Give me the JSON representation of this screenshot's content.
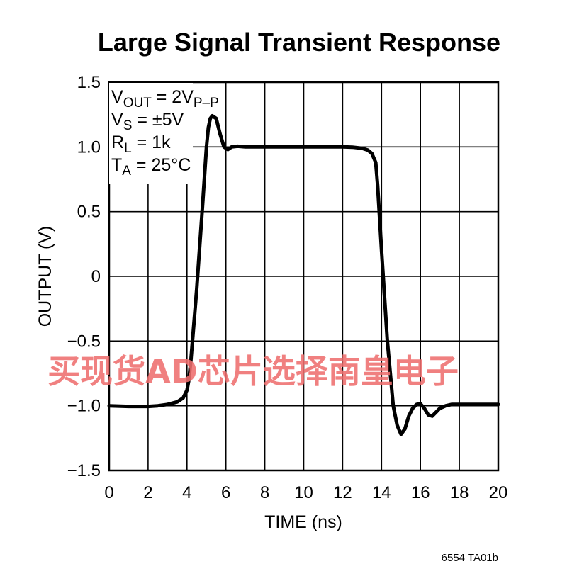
{
  "chart_data": {
    "type": "line",
    "title": "Large Signal Transient Response",
    "xlabel": "TIME (ns)",
    "ylabel": "OUTPUT (V)",
    "xlim": [
      0,
      20
    ],
    "ylim": [
      -1.5,
      1.5
    ],
    "x_ticks": [
      0,
      2,
      4,
      6,
      8,
      10,
      12,
      14,
      16,
      18,
      20
    ],
    "y_ticks": [
      1.5,
      1.0,
      0.5,
      0,
      -0.5,
      -1.0,
      -1.5
    ],
    "x_tick_labels": [
      "0",
      "2",
      "4",
      "6",
      "8",
      "10",
      "12",
      "14",
      "16",
      "18",
      "20"
    ],
    "y_tick_labels": [
      "1.5",
      "1.0",
      "0.5",
      "0",
      "−0.5",
      "−1.0",
      "−1.5"
    ],
    "grid": true,
    "series": [
      {
        "x": [
          0,
          1,
          2,
          2.5,
          3,
          3.5,
          3.8,
          4.0,
          4.1,
          4.2,
          4.5,
          4.8,
          5.0,
          5.1,
          5.2,
          5.3,
          5.5,
          5.7,
          5.9,
          6.1,
          6.3,
          6.6,
          7,
          8,
          10,
          12,
          12.5,
          13,
          13.3,
          13.5,
          13.7,
          13.8,
          14.0,
          14.3,
          14.6,
          14.8,
          15.0,
          15.2,
          15.4,
          15.6,
          15.8,
          16.0,
          16.2,
          16.4,
          16.6,
          16.8,
          17.0,
          17.3,
          17.6,
          18,
          19,
          20
        ],
        "y": [
          -1.0,
          -1.005,
          -1.005,
          -1.0,
          -0.99,
          -0.97,
          -0.94,
          -0.88,
          -0.8,
          -0.65,
          -0.1,
          0.55,
          1.0,
          1.15,
          1.22,
          1.24,
          1.22,
          1.1,
          1.0,
          0.98,
          1.0,
          1.005,
          1.0,
          1.0,
          1.0,
          1.0,
          0.998,
          0.99,
          0.975,
          0.95,
          0.88,
          0.7,
          0.2,
          -0.5,
          -1.0,
          -1.15,
          -1.22,
          -1.18,
          -1.08,
          -1.02,
          -0.99,
          -0.985,
          -1.02,
          -1.07,
          -1.08,
          -1.05,
          -1.02,
          -1.0,
          -0.99,
          -0.99,
          -0.99,
          -0.99
        ]
      }
    ],
    "conditions": [
      {
        "main": "V",
        "sub": "OUT",
        "rest": " = 2V",
        "sub2": "P–P"
      },
      {
        "main": "V",
        "sub": "S",
        "rest": " = ±5V",
        "sub2": ""
      },
      {
        "main": "R",
        "sub": "L",
        "rest": " = 1k",
        "sub2": ""
      },
      {
        "main": "T",
        "sub": "A",
        "rest": " = 25°C",
        "sub2": ""
      }
    ]
  },
  "watermark": "买现货AD芯片选择南皇电子",
  "figure_code": "6554 TA01b",
  "colors": {
    "line": "#000000",
    "grid": "#000000",
    "watermark": "#ef6f6f"
  }
}
